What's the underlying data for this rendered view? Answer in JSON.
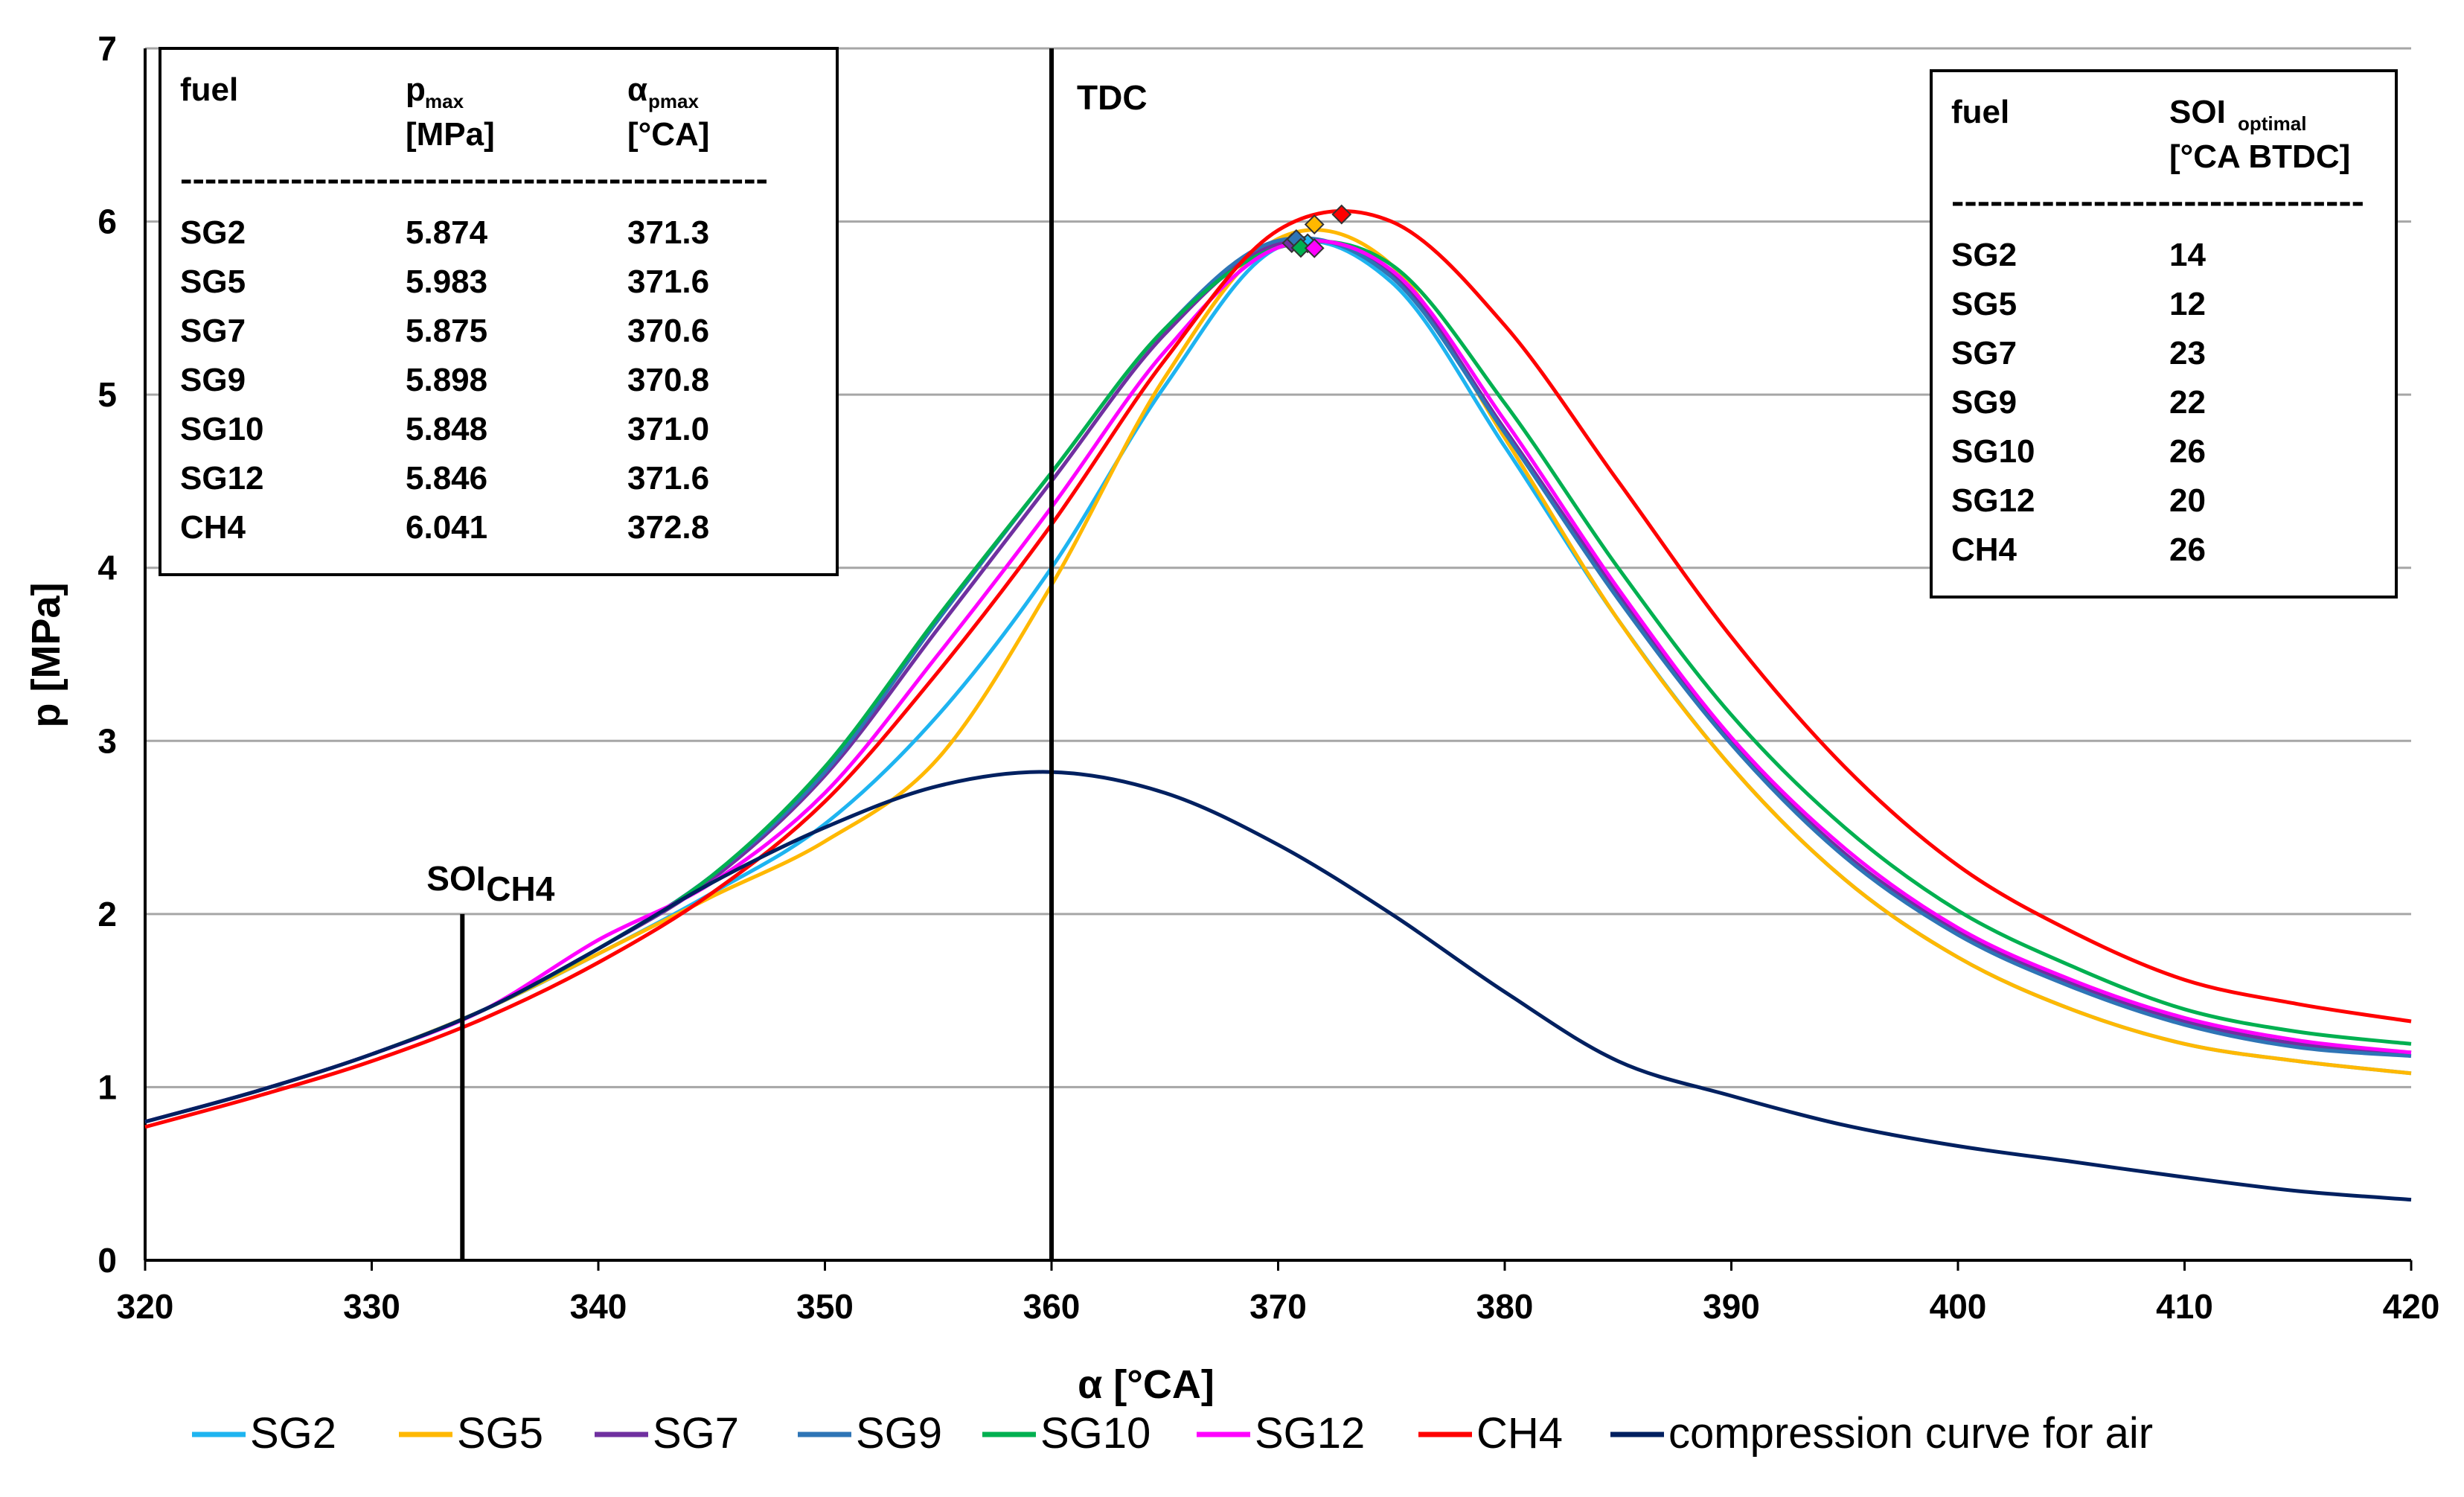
{
  "chart_data": {
    "type": "line",
    "xlabel": "α [°CA]",
    "ylabel": "p [MPa]",
    "xlim": [
      320,
      420
    ],
    "ylim": [
      0,
      7
    ],
    "x_ticks": [
      320,
      330,
      340,
      350,
      360,
      370,
      380,
      390,
      400,
      410,
      420
    ],
    "y_ticks": [
      0,
      1,
      2,
      3,
      4,
      5,
      6,
      7
    ],
    "grid": "horizontal",
    "legend_position": "bottom",
    "x": [
      320,
      325,
      330,
      335,
      340,
      345,
      350,
      355,
      360,
      365,
      370,
      375,
      380,
      385,
      390,
      395,
      400,
      405,
      410,
      415,
      420
    ],
    "series": [
      {
        "name": "SG2",
        "color": "#1EB4F0",
        "values": [
          0.8,
          0.98,
          1.19,
          1.45,
          1.77,
          2.12,
          2.52,
          3.15,
          4.0,
          5.05,
          5.85,
          5.65,
          4.7,
          3.7,
          2.85,
          2.2,
          1.75,
          1.45,
          1.25,
          1.15,
          1.08
        ]
      },
      {
        "name": "SG5",
        "color": "#FFB800",
        "values": [
          0.8,
          0.98,
          1.19,
          1.45,
          1.77,
          2.1,
          2.42,
          2.9,
          3.9,
          5.1,
          5.9,
          5.75,
          4.75,
          3.7,
          2.85,
          2.2,
          1.75,
          1.45,
          1.25,
          1.15,
          1.08
        ]
      },
      {
        "name": "SG7",
        "color": "#7030A0",
        "values": [
          0.8,
          0.98,
          1.19,
          1.45,
          1.8,
          2.2,
          2.8,
          3.65,
          4.5,
          5.35,
          5.87,
          5.7,
          4.8,
          3.85,
          3.0,
          2.35,
          1.9,
          1.6,
          1.38,
          1.25,
          1.2
        ]
      },
      {
        "name": "SG9",
        "color": "#2E75B6",
        "values": [
          0.8,
          0.98,
          1.19,
          1.45,
          1.8,
          2.22,
          2.82,
          3.7,
          4.55,
          5.38,
          5.89,
          5.68,
          4.78,
          3.82,
          2.98,
          2.33,
          1.88,
          1.58,
          1.36,
          1.23,
          1.18
        ]
      },
      {
        "name": "SG10",
        "color": "#00B050",
        "values": [
          0.8,
          0.98,
          1.19,
          1.45,
          1.8,
          2.22,
          2.85,
          3.72,
          4.55,
          5.38,
          5.85,
          5.75,
          4.95,
          4.0,
          3.15,
          2.5,
          2.02,
          1.7,
          1.45,
          1.32,
          1.25
        ]
      },
      {
        "name": "SG12",
        "color": "#FF00FF",
        "values": [
          0.8,
          0.98,
          1.19,
          1.45,
          1.85,
          2.18,
          2.7,
          3.5,
          4.35,
          5.25,
          5.85,
          5.72,
          4.85,
          3.88,
          3.02,
          2.38,
          1.92,
          1.62,
          1.4,
          1.27,
          1.2
        ]
      },
      {
        "name": "CH4",
        "color": "#FF0000",
        "values": [
          0.77,
          0.95,
          1.15,
          1.4,
          1.72,
          2.12,
          2.65,
          3.4,
          4.25,
          5.2,
          5.95,
          6.0,
          5.4,
          4.5,
          3.6,
          2.85,
          2.28,
          1.9,
          1.62,
          1.48,
          1.38
        ]
      },
      {
        "name": "compression curve for air",
        "color": "#002060",
        "values": [
          0.8,
          0.98,
          1.19,
          1.45,
          1.8,
          2.18,
          2.5,
          2.74,
          2.82,
          2.7,
          2.4,
          2.0,
          1.55,
          1.15,
          0.95,
          0.78,
          0.66,
          0.57,
          0.48,
          0.4,
          0.35
        ]
      }
    ],
    "peak_markers": [
      {
        "x": 371.3,
        "y": 5.874,
        "color": "#1EB4F0"
      },
      {
        "x": 371.6,
        "y": 5.983,
        "color": "#FFB800"
      },
      {
        "x": 370.6,
        "y": 5.875,
        "color": "#7030A0"
      },
      {
        "x": 370.8,
        "y": 5.898,
        "color": "#2E75B6"
      },
      {
        "x": 371.0,
        "y": 5.848,
        "color": "#00B050"
      },
      {
        "x": 371.6,
        "y": 5.846,
        "color": "#FF00FF"
      },
      {
        "x": 372.8,
        "y": 6.041,
        "color": "#FF0000"
      }
    ],
    "vertical_lines": [
      {
        "x": 360,
        "top": 7,
        "label": "TDC"
      },
      {
        "x": 334,
        "top": 2,
        "label": "SOI",
        "label_sub": "CH4"
      }
    ],
    "table_pmax": {
      "headers": [
        {
          "main": "fuel",
          "sub": "",
          "unit": ""
        },
        {
          "main": "p",
          "sub": "max",
          "unit": "[MPa]"
        },
        {
          "main": "α",
          "sub": "pmax",
          "unit": "[°CA]"
        }
      ],
      "separator": "------------------------------------------------",
      "rows": [
        [
          "SG2",
          "5.874",
          "371.3"
        ],
        [
          "SG5",
          "5.983",
          "371.6"
        ],
        [
          "SG7",
          "5.875",
          "370.6"
        ],
        [
          "SG9",
          "5.898",
          "370.8"
        ],
        [
          "SG10",
          "5.848",
          "371.0"
        ],
        [
          "SG12",
          "5.846",
          "371.6"
        ],
        [
          "CH4",
          "6.041",
          "372.8"
        ]
      ]
    },
    "table_soi": {
      "headers": [
        {
          "main": "fuel",
          "sub": "",
          "unit": ""
        },
        {
          "main": "SOI",
          "sub": "optimal",
          "unit": "[°CA BTDC]"
        }
      ],
      "separator": "--------------------------------",
      "rows": [
        [
          "SG2",
          "14"
        ],
        [
          "SG5",
          "12"
        ],
        [
          "SG7",
          "23"
        ],
        [
          "SG9",
          "22"
        ],
        [
          "SG10",
          "26"
        ],
        [
          "SG12",
          "20"
        ],
        [
          "CH4",
          "26"
        ]
      ]
    }
  }
}
